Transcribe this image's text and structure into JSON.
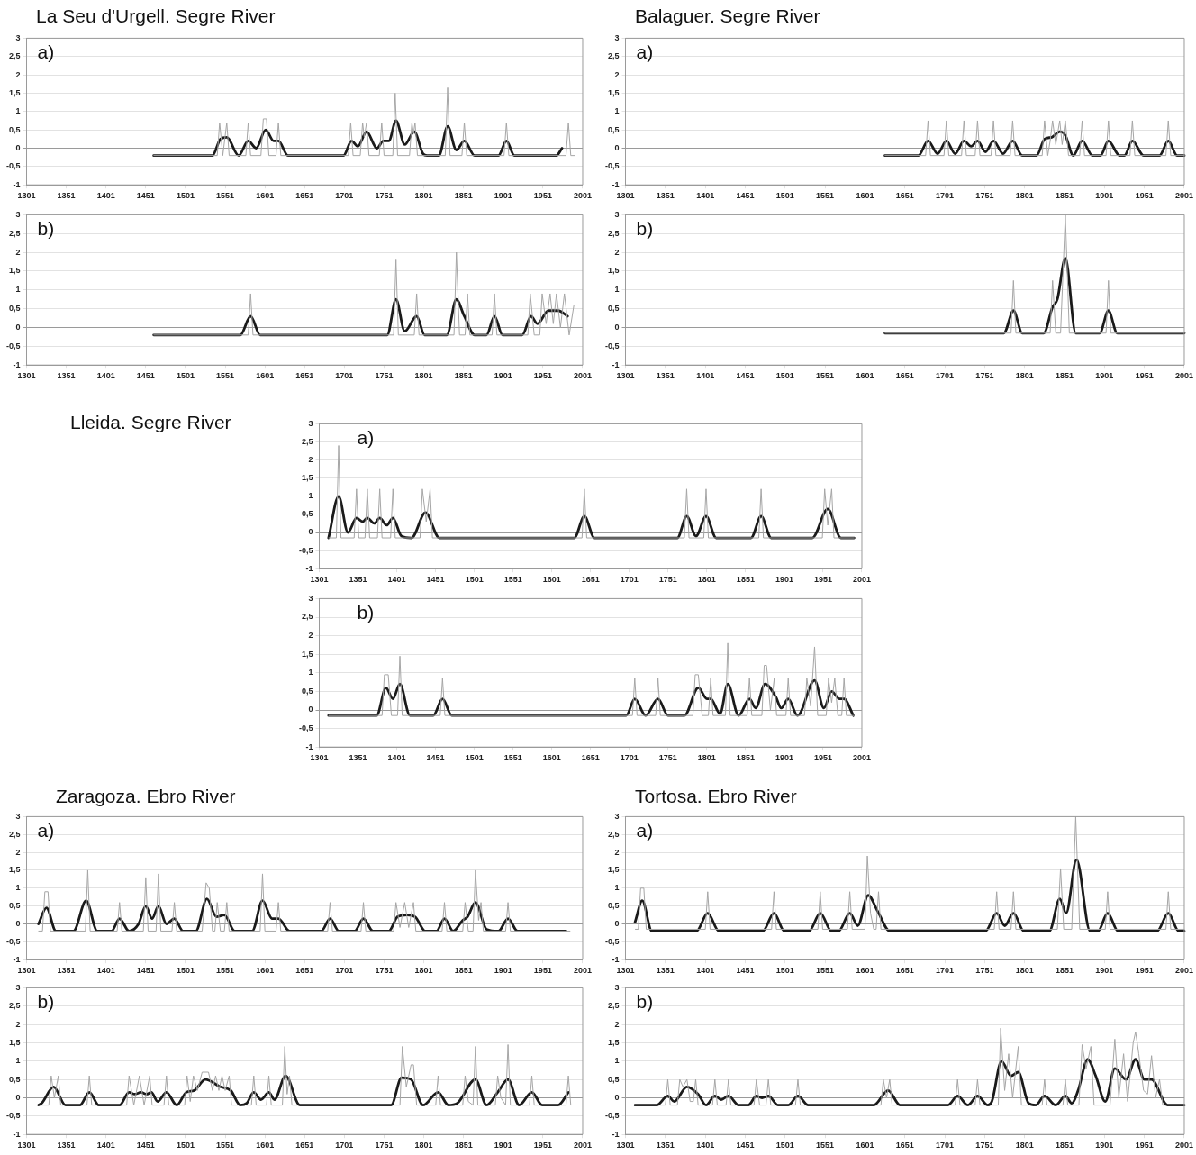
{
  "chart_data": [
    {
      "type": "line",
      "title": "La Seu d'Urgell. Segre River",
      "annotations": [
        "a)"
      ],
      "xlim": [
        1301,
        2001
      ],
      "xticks": [
        1301,
        1351,
        1401,
        1451,
        1501,
        1551,
        1601,
        1651,
        1701,
        1751,
        1801,
        1851,
        1901,
        1951,
        2001
      ],
      "ylim": [
        -1,
        3
      ],
      "yticks": [
        -1,
        {
          "value": -0.5,
          "label": "-0,5"
        },
        0,
        {
          "value": 0.5,
          "label": "0,5"
        },
        1,
        {
          "value": 1.5,
          "label": "1,5"
        },
        2,
        {
          "value": 2.5,
          "label": "2,5"
        },
        3
      ],
      "grid": "y",
      "series": [
        {
          "color": "#a6a6a6",
          "x": [
            1461,
            1541,
            1544,
            1548,
            1553,
            1556,
            1577,
            1580,
            1583,
            1596,
            1599,
            1603,
            1606,
            1615,
            1618,
            1621,
            1706,
            1709,
            1712,
            1721,
            1724,
            1726,
            1729,
            1732,
            1745,
            1748,
            1751,
            1762,
            1765,
            1768,
            1783,
            1786,
            1788,
            1790,
            1793,
            1828,
            1831,
            1834,
            1849,
            1852,
            1855,
            1902,
            1905,
            1908,
            1980,
            1983,
            1986,
            1991
          ],
          "values": [
            -0.2,
            -0.2,
            0.7,
            -0.2,
            0.7,
            -0.2,
            -0.2,
            0.7,
            -0.2,
            -0.2,
            0.8,
            0.8,
            -0.2,
            -0.2,
            0.7,
            -0.2,
            -0.2,
            0.7,
            -0.2,
            -0.2,
            0.7,
            0.3,
            0.7,
            -0.2,
            -0.2,
            0.7,
            -0.2,
            -0.2,
            1.5,
            -0.2,
            -0.2,
            0.7,
            0.4,
            0.7,
            -0.2,
            -0.2,
            1.65,
            -0.2,
            -0.2,
            0.7,
            -0.2,
            -0.2,
            0.7,
            -0.2,
            -0.2,
            0.7,
            -0.2,
            -0.2
          ]
        },
        {
          "color": "#1a1a1a",
          "x": [
            1461,
            1535,
            1545,
            1553,
            1568,
            1580,
            1590,
            1602,
            1612,
            1618,
            1630,
            1700,
            1710,
            1718,
            1729,
            1742,
            1750,
            1757,
            1766,
            1777,
            1789,
            1800,
            1805,
            1820,
            1831,
            1842,
            1852,
            1865,
            1895,
            1905,
            1915,
            1968,
            1975
          ],
          "values": [
            -0.2,
            -0.2,
            0.25,
            0.3,
            -0.2,
            0.2,
            0,
            0.5,
            0.2,
            0.2,
            -0.2,
            -0.2,
            0.2,
            0.05,
            0.45,
            0,
            0.2,
            0.2,
            0.75,
            0.1,
            0.45,
            -0.15,
            -0.2,
            -0.2,
            0.6,
            -0.05,
            0.2,
            -0.2,
            -0.2,
            0.2,
            -0.2,
            -0.2,
            0
          ]
        }
      ]
    },
    {
      "type": "line",
      "annotations": [
        "b)"
      ],
      "xlim": [
        1301,
        2001
      ],
      "xticks": [
        1301,
        1351,
        1401,
        1451,
        1501,
        1551,
        1601,
        1651,
        1701,
        1751,
        1801,
        1851,
        1901,
        1951,
        2001
      ],
      "ylim": [
        -1,
        3
      ],
      "yticks": [
        -1,
        {
          "value": -0.5,
          "label": "-0,5"
        },
        0,
        {
          "value": 0.5,
          "label": "0,5"
        },
        1,
        {
          "value": 1.5,
          "label": "1,5"
        },
        2,
        {
          "value": 2.5,
          "label": "2,5"
        },
        3
      ],
      "grid": "y",
      "series": [
        {
          "color": "#a6a6a6",
          "x": [
            1461,
            1580,
            1583,
            1586,
            1763,
            1766,
            1769,
            1789,
            1792,
            1795,
            1839,
            1842,
            1846,
            1853,
            1856,
            1859,
            1887,
            1890,
            1893,
            1932,
            1935,
            1940,
            1947,
            1950,
            1955,
            1960,
            1964,
            1968,
            1973,
            1978,
            1984,
            1990
          ],
          "values": [
            -0.2,
            -0.2,
            0.9,
            -0.2,
            -0.2,
            1.8,
            -0.2,
            -0.2,
            0.9,
            -0.2,
            -0.2,
            2,
            -0.2,
            -0.2,
            0.9,
            -0.2,
            -0.2,
            0.9,
            -0.2,
            -0.2,
            0.9,
            -0.2,
            -0.2,
            0.9,
            0.1,
            0.9,
            0.1,
            0.9,
            0,
            0.9,
            -0.2,
            0.6
          ]
        },
        {
          "color": "#1a1a1a",
          "x": [
            1461,
            1570,
            1583,
            1595,
            1755,
            1766,
            1777,
            1792,
            1802,
            1830,
            1842,
            1852,
            1865,
            1880,
            1890,
            1900,
            1925,
            1936,
            1944,
            1958,
            1970,
            1982
          ],
          "values": [
            -0.2,
            -0.2,
            0.3,
            -0.2,
            -0.2,
            0.75,
            -0.1,
            0.3,
            -0.2,
            -0.2,
            0.75,
            0.3,
            -0.2,
            -0.2,
            0.3,
            -0.2,
            -0.2,
            0.3,
            0.1,
            0.45,
            0.45,
            0.3
          ]
        }
      ]
    },
    {
      "type": "line",
      "title": "Balaguer. Segre River",
      "annotations": [
        "a)"
      ],
      "xlim": [
        1301,
        2001
      ],
      "xticks": [
        1301,
        1351,
        1401,
        1451,
        1501,
        1551,
        1601,
        1651,
        1701,
        1751,
        1801,
        1851,
        1901,
        1951,
        2001
      ],
      "ylim": [
        -1,
        3
      ],
      "yticks": [
        -1,
        {
          "value": -0.5,
          "label": "-0,5"
        },
        0,
        {
          "value": 0.5,
          "label": "0,5"
        },
        1,
        {
          "value": 1.5,
          "label": "1,5"
        },
        2,
        {
          "value": 2.5,
          "label": "2,5"
        },
        3
      ],
      "grid": "y",
      "series": [
        {
          "color": "#a6a6a6",
          "x": [
            1626,
            1677,
            1680,
            1683,
            1700,
            1703,
            1706,
            1722,
            1725,
            1728,
            1739,
            1742,
            1745,
            1759,
            1762,
            1765,
            1783,
            1786,
            1789,
            1823,
            1826,
            1830,
            1833,
            1836,
            1840,
            1845,
            1848,
            1852,
            1856,
            1870,
            1873,
            1876,
            1903,
            1906,
            1909,
            1933,
            1936,
            1939,
            1978,
            1981,
            1984,
            2001
          ],
          "values": [
            -0.2,
            -0.2,
            0.75,
            -0.2,
            -0.2,
            0.75,
            -0.2,
            -0.2,
            0.75,
            -0.2,
            -0.2,
            0.75,
            -0.2,
            -0.2,
            0.75,
            -0.2,
            -0.2,
            0.75,
            -0.2,
            -0.2,
            0.75,
            -0.2,
            0.2,
            0.75,
            0.1,
            0.75,
            0.1,
            0.75,
            -0.2,
            -0.2,
            0.75,
            -0.2,
            -0.2,
            0.75,
            -0.2,
            -0.2,
            0.75,
            -0.2,
            -0.2,
            0.75,
            -0.2,
            -0.2
          ]
        },
        {
          "color": "#1a1a1a",
          "x": [
            1626,
            1668,
            1680,
            1692,
            1703,
            1714,
            1725,
            1734,
            1742,
            1752,
            1762,
            1774,
            1786,
            1798,
            1816,
            1826,
            1835,
            1845,
            1852,
            1862,
            1873,
            1886,
            1896,
            1906,
            1920,
            1926,
            1936,
            1950,
            1970,
            1981,
            1992,
            2001
          ],
          "values": [
            -0.2,
            -0.2,
            0.2,
            -0.15,
            0.2,
            -0.15,
            0.2,
            0.05,
            0.2,
            -0.1,
            0.2,
            -0.15,
            0.2,
            -0.2,
            -0.2,
            0.25,
            0.3,
            0.45,
            0.35,
            -0.2,
            0.2,
            -0.2,
            -0.2,
            0.2,
            -0.2,
            -0.2,
            0.2,
            -0.2,
            -0.2,
            0.2,
            -0.2,
            -0.2
          ]
        }
      ]
    },
    {
      "type": "line",
      "annotations": [
        "b)"
      ],
      "xlim": [
        1301,
        2001
      ],
      "xticks": [
        1301,
        1351,
        1401,
        1451,
        1501,
        1551,
        1601,
        1651,
        1701,
        1751,
        1801,
        1851,
        1901,
        1951,
        2001
      ],
      "ylim": [
        -1,
        3
      ],
      "yticks": [
        -1,
        {
          "value": -0.5,
          "label": "-0,5"
        },
        0,
        {
          "value": 0.5,
          "label": "0,5"
        },
        1,
        {
          "value": 1.5,
          "label": "1,5"
        },
        2,
        {
          "value": 2.5,
          "label": "2,5"
        },
        3
      ],
      "grid": "y",
      "series": [
        {
          "color": "#a6a6a6",
          "x": [
            1626,
            1784,
            1787,
            1790,
            1833,
            1836,
            1840,
            1846,
            1852,
            1857,
            1903,
            1906,
            1909,
            2001
          ],
          "values": [
            -0.15,
            -0.15,
            1.25,
            -0.15,
            -0.15,
            1.25,
            -0.15,
            -0.15,
            3,
            -0.15,
            -0.15,
            1.25,
            -0.15,
            -0.15
          ]
        },
        {
          "color": "#1a1a1a",
          "x": [
            1626,
            1775,
            1787,
            1798,
            1825,
            1836,
            1842,
            1852,
            1865,
            1895,
            1906,
            1917,
            2001
          ],
          "values": [
            -0.15,
            -0.15,
            0.45,
            -0.15,
            -0.15,
            0.55,
            0.75,
            1.85,
            -0.15,
            -0.15,
            0.45,
            -0.15,
            -0.15
          ]
        }
      ]
    },
    {
      "type": "line",
      "title": "Lleida. Segre River",
      "annotations": [
        "a)"
      ],
      "xlim": [
        1301,
        2001
      ],
      "xticks": [
        1301,
        1351,
        1401,
        1451,
        1501,
        1551,
        1601,
        1651,
        1701,
        1751,
        1801,
        1851,
        1901,
        1951,
        2001
      ],
      "ylim": [
        -1,
        3
      ],
      "yticks": [
        -1,
        {
          "value": -0.5,
          "label": "-0,5"
        },
        0,
        {
          "value": 0.5,
          "label": "0,5"
        },
        1,
        {
          "value": 1.5,
          "label": "1,5"
        },
        2,
        {
          "value": 2.5,
          "label": "2,5"
        },
        3
      ],
      "grid": "y",
      "series": [
        {
          "color": "#a6a6a6",
          "x": [
            1313,
            1323,
            1326,
            1329,
            1346,
            1349,
            1352,
            1360,
            1363,
            1366,
            1376,
            1379,
            1382,
            1393,
            1396,
            1399,
            1431,
            1434,
            1439,
            1444,
            1447,
            1640,
            1643,
            1646,
            1772,
            1775,
            1778,
            1797,
            1800,
            1803,
            1868,
            1871,
            1874,
            1950,
            1953,
            1957,
            1962,
            1965,
            1991
          ],
          "values": [
            -0.15,
            -0.15,
            2.4,
            -0.15,
            -0.15,
            1.2,
            -0.15,
            -0.15,
            1.2,
            -0.15,
            -0.15,
            1.2,
            -0.15,
            -0.15,
            1.2,
            -0.15,
            -0.15,
            1.2,
            0.3,
            1.2,
            -0.15,
            -0.15,
            1.2,
            -0.15,
            -0.15,
            1.2,
            -0.15,
            -0.15,
            1.2,
            -0.15,
            -0.15,
            1.2,
            -0.15,
            -0.15,
            1.2,
            0.2,
            1.2,
            -0.15,
            -0.15
          ]
        },
        {
          "color": "#1a1a1a",
          "x": [
            1313,
            1326,
            1338,
            1349,
            1357,
            1363,
            1372,
            1379,
            1388,
            1396,
            1407,
            1420,
            1438,
            1456,
            1630,
            1643,
            1656,
            1763,
            1775,
            1787,
            1800,
            1813,
            1858,
            1871,
            1884,
            1937,
            1957,
            1974,
            1991
          ],
          "values": [
            -0.15,
            1,
            0,
            0.4,
            0.3,
            0.4,
            0.25,
            0.4,
            0.2,
            0.4,
            -0.1,
            -0.15,
            0.55,
            -0.15,
            -0.15,
            0.45,
            -0.15,
            -0.15,
            0.45,
            -0.1,
            0.45,
            -0.15,
            -0.15,
            0.45,
            -0.15,
            -0.15,
            0.65,
            -0.15,
            -0.15
          ]
        }
      ]
    },
    {
      "type": "line",
      "annotations": [
        "b)"
      ],
      "xlim": [
        1301,
        2001
      ],
      "xticks": [
        1301,
        1351,
        1401,
        1451,
        1501,
        1551,
        1601,
        1651,
        1701,
        1751,
        1801,
        1851,
        1901,
        1951,
        2001
      ],
      "ylim": [
        -1,
        3
      ],
      "yticks": [
        -1,
        {
          "value": -0.5,
          "label": "-0,5"
        },
        0,
        {
          "value": 0.5,
          "label": "0,5"
        },
        1,
        {
          "value": 1.5,
          "label": "1,5"
        },
        2,
        {
          "value": 2.5,
          "label": "2,5"
        },
        3
      ],
      "grid": "y",
      "series": [
        {
          "color": "#a6a6a6",
          "x": [
            1313,
            1382,
            1385,
            1390,
            1394,
            1402,
            1405,
            1408,
            1457,
            1460,
            1463,
            1705,
            1708,
            1711,
            1735,
            1738,
            1741,
            1783,
            1786,
            1790,
            1795,
            1803,
            1806,
            1809,
            1825,
            1828,
            1831,
            1853,
            1856,
            1859,
            1872,
            1875,
            1878,
            1883,
            1888,
            1891,
            1903,
            1906,
            1909,
            1927,
            1930,
            1935,
            1940,
            1944,
            1955,
            1958,
            1962,
            1966,
            1970,
            1975,
            1978,
            1981,
            1991
          ],
          "values": [
            -0.15,
            -0.15,
            0.95,
            0.95,
            -0.15,
            -0.15,
            1.45,
            -0.15,
            -0.15,
            0.85,
            -0.15,
            -0.15,
            0.85,
            -0.15,
            -0.15,
            0.85,
            -0.15,
            -0.15,
            0.95,
            0.95,
            -0.15,
            -0.15,
            0.85,
            -0.15,
            -0.15,
            1.8,
            -0.15,
            -0.15,
            0.85,
            -0.15,
            -0.15,
            1.2,
            1.2,
            0,
            0.85,
            -0.15,
            -0.15,
            0.85,
            -0.15,
            -0.15,
            0.85,
            0.1,
            1.7,
            -0.15,
            -0.15,
            0.85,
            0.2,
            0.85,
            -0.15,
            -0.15,
            0.85,
            -0.15,
            -0.15
          ]
        },
        {
          "color": "#1a1a1a",
          "x": [
            1313,
            1375,
            1387,
            1396,
            1405,
            1418,
            1448,
            1460,
            1472,
            1697,
            1708,
            1722,
            1738,
            1751,
            1772,
            1790,
            1801,
            1806,
            1818,
            1828,
            1842,
            1856,
            1864,
            1876,
            1890,
            1897,
            1906,
            1918,
            1940,
            1952,
            1962,
            1972,
            1978,
            1990
          ],
          "values": [
            -0.15,
            -0.15,
            0.6,
            0.3,
            0.7,
            -0.15,
            -0.15,
            0.3,
            -0.15,
            -0.15,
            0.3,
            -0.15,
            0.3,
            -0.15,
            -0.15,
            0.6,
            0.3,
            0.3,
            -0.1,
            0.7,
            -0.15,
            0.3,
            0.05,
            0.7,
            0.35,
            0.05,
            0.3,
            -0.15,
            0.8,
            0.05,
            0.5,
            0.3,
            0.3,
            -0.15
          ]
        }
      ]
    },
    {
      "type": "line",
      "title": "Zaragoza. Ebro River",
      "annotations": [
        "a)"
      ],
      "xlim": [
        1301,
        2001
      ],
      "xticks": [
        1301,
        1351,
        1401,
        1451,
        1501,
        1551,
        1601,
        1651,
        1701,
        1751,
        1801,
        1851,
        1901,
        1951,
        2001
      ],
      "ylim": [
        -1,
        3
      ],
      "yticks": [
        -1,
        {
          "value": -0.5,
          "label": "-0,5"
        },
        0,
        {
          "value": 0.5,
          "label": "0,5"
        },
        1,
        {
          "value": 1.5,
          "label": "1,5"
        },
        2,
        {
          "value": 2.5,
          "label": "2,5"
        },
        3
      ],
      "grid": "y",
      "series": [
        {
          "color": "#a6a6a6",
          "x": [
            1316,
            1321,
            1324,
            1328,
            1331,
            1375,
            1378,
            1381,
            1415,
            1418,
            1421,
            1448,
            1451,
            1454,
            1464,
            1467,
            1470,
            1484,
            1487,
            1490,
            1522,
            1527,
            1531,
            1535,
            1538,
            1541,
            1545,
            1550,
            1553,
            1556,
            1595,
            1598,
            1601,
            1615,
            1618,
            1621,
            1680,
            1683,
            1686,
            1722,
            1725,
            1728,
            1763,
            1766,
            1771,
            1777,
            1782,
            1788,
            1791,
            1824,
            1827,
            1830,
            1850,
            1853,
            1857,
            1863,
            1866,
            1870,
            1873,
            1876,
            1904,
            1907,
            1910,
            1985
          ],
          "values": [
            -0.2,
            -0.2,
            0.9,
            0.9,
            -0.2,
            -0.2,
            1.5,
            -0.2,
            -0.2,
            0.6,
            -0.2,
            -0.2,
            1.3,
            -0.2,
            -0.2,
            1.4,
            -0.2,
            -0.2,
            0.6,
            -0.2,
            -0.2,
            1.15,
            1,
            -0.2,
            -0.2,
            0.6,
            -0.2,
            -0.2,
            0.6,
            -0.2,
            -0.2,
            1.4,
            -0.2,
            -0.2,
            0.6,
            -0.2,
            -0.2,
            0.6,
            -0.2,
            -0.2,
            0.6,
            -0.2,
            -0.2,
            0.6,
            -0.1,
            0.6,
            -0.1,
            0.6,
            -0.2,
            -0.2,
            0.6,
            -0.2,
            -0.2,
            0.6,
            -0.2,
            -0.2,
            1.5,
            0.1,
            0.6,
            -0.2,
            -0.2,
            0.6,
            -0.2,
            -0.2
          ]
        },
        {
          "color": "#1a1a1a",
          "x": [
            1316,
            1326,
            1338,
            1360,
            1376,
            1390,
            1408,
            1418,
            1430,
            1442,
            1451,
            1459,
            1467,
            1477,
            1487,
            1498,
            1514,
            1528,
            1540,
            1550,
            1563,
            1585,
            1598,
            1610,
            1618,
            1632,
            1672,
            1683,
            1694,
            1714,
            1725,
            1737,
            1757,
            1768,
            1780,
            1790,
            1803,
            1817,
            1827,
            1838,
            1850,
            1856,
            1866,
            1880,
            1895,
            1907,
            1919,
            1980
          ],
          "values": [
            0,
            0.45,
            -0.2,
            -0.2,
            0.65,
            -0.2,
            -0.2,
            0.15,
            -0.2,
            0,
            0.5,
            0.15,
            0.5,
            0,
            0.15,
            -0.2,
            -0.2,
            0.7,
            0.2,
            0.25,
            -0.2,
            -0.2,
            0.65,
            0.15,
            0.15,
            -0.2,
            -0.2,
            0.15,
            -0.2,
            -0.2,
            0.15,
            -0.2,
            -0.2,
            0.2,
            0.25,
            0.2,
            -0.2,
            -0.2,
            0.15,
            -0.2,
            0.1,
            0.2,
            0.6,
            -0.15,
            -0.2,
            0.15,
            -0.2,
            -0.2
          ]
        }
      ]
    },
    {
      "type": "line",
      "annotations": [
        "b)"
      ],
      "xlim": [
        1301,
        2001
      ],
      "xticks": [
        1301,
        1351,
        1401,
        1451,
        1501,
        1551,
        1601,
        1651,
        1701,
        1751,
        1801,
        1851,
        1901,
        1951,
        2001
      ],
      "ylim": [
        -1,
        3
      ],
      "yticks": [
        -1,
        {
          "value": -0.5,
          "label": "-0,5"
        },
        0,
        {
          "value": 0.5,
          "label": "0,5"
        },
        1,
        {
          "value": 1.5,
          "label": "1,5"
        },
        2,
        {
          "value": 2.5,
          "label": "2,5"
        },
        3
      ],
      "grid": "y",
      "series": [
        {
          "color": "#a6a6a6",
          "x": [
            1316,
            1329,
            1332,
            1336,
            1341,
            1344,
            1377,
            1380,
            1383,
            1427,
            1430,
            1436,
            1443,
            1449,
            1456,
            1459,
            1474,
            1477,
            1480,
            1500,
            1503,
            1507,
            1511,
            1516,
            1522,
            1530,
            1535,
            1539,
            1543,
            1547,
            1551,
            1556,
            1559,
            1584,
            1587,
            1590,
            1603,
            1606,
            1609,
            1623,
            1626,
            1629,
            1632,
            1635,
            1771,
            1774,
            1779,
            1785,
            1788,
            1792,
            1816,
            1819,
            1822,
            1850,
            1853,
            1857,
            1863,
            1866,
            1869,
            1891,
            1894,
            1898,
            1904,
            1907,
            1910,
            1934,
            1937,
            1940,
            1980,
            1983,
            1986
          ],
          "values": [
            -0.2,
            -0.2,
            0.6,
            0,
            0.6,
            -0.2,
            -0.2,
            0.6,
            -0.2,
            -0.2,
            0.6,
            -0.2,
            0.6,
            -0.2,
            0.6,
            -0.2,
            -0.2,
            0.6,
            -0.2,
            -0.2,
            0.6,
            -0.1,
            0.6,
            0.2,
            0.7,
            0.7,
            0.2,
            0.6,
            0.2,
            0.6,
            0.2,
            0.6,
            -0.2,
            -0.2,
            0.6,
            -0.2,
            -0.2,
            0.6,
            -0.2,
            -0.2,
            1.4,
            0.1,
            0.6,
            -0.2,
            -0.2,
            1.4,
            0.3,
            0.9,
            0.9,
            -0.2,
            -0.2,
            0.6,
            -0.2,
            -0.2,
            0.6,
            -0.1,
            -0.2,
            1.4,
            -0.2,
            -0.2,
            0.6,
            0,
            -0.2,
            1.45,
            -0.2,
            -0.2,
            0.6,
            -0.2,
            -0.2,
            0.6,
            -0.2
          ]
        },
        {
          "color": "#1a1a1a",
          "x": [
            1316,
            1320,
            1335,
            1350,
            1368,
            1380,
            1392,
            1418,
            1430,
            1437,
            1445,
            1452,
            1458,
            1466,
            1477,
            1490,
            1502,
            1512,
            1526,
            1545,
            1558,
            1570,
            1578,
            1587,
            1596,
            1606,
            1613,
            1627,
            1645,
            1760,
            1773,
            1785,
            1800,
            1819,
            1832,
            1843,
            1866,
            1880,
            1894,
            1907,
            1921,
            1937,
            1950,
            1970,
            1983
          ],
          "values": [
            -0.2,
            -0.15,
            0.3,
            -0.2,
            -0.2,
            0.15,
            -0.2,
            -0.2,
            0.15,
            0.1,
            0.15,
            0.1,
            0.15,
            -0.1,
            0.15,
            -0.2,
            0.15,
            0.2,
            0.5,
            0.3,
            0.2,
            -0.2,
            -0.15,
            0.15,
            -0.05,
            0.15,
            -0.05,
            0.6,
            -0.2,
            -0.2,
            0.55,
            0.5,
            -0.2,
            0.15,
            -0.2,
            -0.15,
            0.5,
            -0.2,
            0.15,
            0.5,
            -0.2,
            0.15,
            -0.2,
            -0.2,
            0.15
          ]
        }
      ]
    },
    {
      "type": "line",
      "title": "Tortosa. Ebro River",
      "annotations": [
        "a)"
      ],
      "xlim": [
        1301,
        2001
      ],
      "xticks": [
        1301,
        1351,
        1401,
        1451,
        1501,
        1551,
        1601,
        1651,
        1701,
        1751,
        1801,
        1851,
        1901,
        1951,
        2001
      ],
      "ylim": [
        -1,
        3
      ],
      "yticks": [
        -1,
        {
          "value": -0.5,
          "label": "-0,5"
        },
        0,
        {
          "value": 0.5,
          "label": "0,5"
        },
        1,
        {
          "value": 1.5,
          "label": "1,5"
        },
        2,
        {
          "value": 2.5,
          "label": "2,5"
        },
        3
      ],
      "grid": "y",
      "series": [
        {
          "color": "#a6a6a6",
          "x": [
            1313,
            1317,
            1320,
            1324,
            1327,
            1401,
            1404,
            1407,
            1484,
            1487,
            1490,
            1542,
            1545,
            1548,
            1579,
            1582,
            1585,
            1601,
            1604,
            1608,
            1612,
            1615,
            1618,
            1621,
            1763,
            1766,
            1769,
            1784,
            1787,
            1790,
            1842,
            1846,
            1850,
            1860,
            1865,
            1870,
            1902,
            1905,
            1908,
            1978,
            1981,
            1984,
            2001
          ],
          "values": [
            -0.15,
            -0.15,
            1,
            1,
            -0.15,
            -0.15,
            0.9,
            -0.15,
            -0.15,
            0.9,
            -0.15,
            -0.15,
            0.9,
            -0.15,
            -0.15,
            0.9,
            -0.15,
            -0.15,
            1.9,
            0.3,
            -0.15,
            -0.15,
            0.9,
            -0.15,
            -0.15,
            0.9,
            -0.15,
            -0.15,
            0.9,
            -0.15,
            -0.15,
            1.55,
            -0.15,
            -0.15,
            3,
            -0.15,
            -0.15,
            0.9,
            -0.15,
            -0.15,
            0.9,
            -0.15,
            -0.15
          ]
        },
        {
          "color": "#1a1a1a",
          "x": [
            1313,
            1322,
            1334,
            1390,
            1404,
            1418,
            1473,
            1487,
            1500,
            1531,
            1545,
            1559,
            1568,
            1582,
            1592,
            1605,
            1617,
            1632,
            1752,
            1766,
            1776,
            1787,
            1800,
            1832,
            1845,
            1853,
            1866,
            1883,
            1893,
            1905,
            1918,
            1967,
            1981,
            1994,
            2001
          ],
          "values": [
            0.05,
            0.65,
            -0.2,
            -0.2,
            0.3,
            -0.2,
            -0.2,
            0.3,
            -0.2,
            -0.2,
            0.3,
            -0.2,
            -0.2,
            0.3,
            -0.05,
            0.8,
            0.35,
            -0.2,
            -0.2,
            0.3,
            -0.05,
            0.3,
            -0.2,
            -0.2,
            0.7,
            0.3,
            1.8,
            -0.2,
            -0.2,
            0.3,
            -0.2,
            -0.2,
            0.3,
            -0.2,
            -0.2
          ]
        }
      ]
    },
    {
      "type": "line",
      "annotations": [
        "b)"
      ],
      "xlim": [
        1301,
        2001
      ],
      "xticks": [
        1301,
        1351,
        1401,
        1451,
        1501,
        1551,
        1601,
        1651,
        1701,
        1751,
        1801,
        1851,
        1901,
        1951,
        2001
      ],
      "ylim": [
        -1,
        3
      ],
      "yticks": [
        -1,
        {
          "value": -0.5,
          "label": "-0,5"
        },
        0,
        {
          "value": 0.5,
          "label": "0,5"
        },
        1,
        {
          "value": 1.5,
          "label": "1,5"
        },
        2,
        {
          "value": 2.5,
          "label": "2,5"
        },
        3
      ],
      "grid": "y",
      "series": [
        {
          "color": "#a6a6a6",
          "x": [
            1313,
            1351,
            1354,
            1357,
            1366,
            1369,
            1373,
            1378,
            1382,
            1386,
            1389,
            1392,
            1410,
            1413,
            1416,
            1427,
            1430,
            1433,
            1462,
            1465,
            1469,
            1477,
            1480,
            1483,
            1514,
            1517,
            1520,
            1621,
            1624,
            1628,
            1632,
            1635,
            1714,
            1717,
            1720,
            1739,
            1742,
            1745,
            1768,
            1771,
            1776,
            1781,
            1786,
            1793,
            1797,
            1823,
            1826,
            1829,
            1849,
            1852,
            1855,
            1869,
            1873,
            1878,
            1884,
            1888,
            1897,
            1908,
            1914,
            1919,
            1925,
            1930,
            1937,
            1940,
            1944,
            1950,
            1955,
            1960,
            1965,
            1970,
            1974,
            2001
          ],
          "values": [
            -0.2,
            -0.2,
            0.5,
            -0.2,
            -0.2,
            0.5,
            0.3,
            0.5,
            -0.1,
            -0.1,
            0.5,
            -0.2,
            -0.2,
            0.5,
            -0.2,
            -0.2,
            0.5,
            -0.2,
            -0.2,
            0.5,
            -0.2,
            -0.2,
            0.5,
            -0.2,
            -0.2,
            0.5,
            -0.2,
            -0.2,
            0.5,
            0,
            0.5,
            -0.2,
            -0.2,
            0.5,
            -0.2,
            -0.2,
            0.5,
            -0.2,
            -0.2,
            1.9,
            0.2,
            1.2,
            0,
            1.4,
            -0.2,
            -0.2,
            0.5,
            -0.2,
            -0.2,
            0.5,
            -0.2,
            -0.2,
            1.45,
            0.8,
            1.4,
            -0.2,
            -0.2,
            -0.2,
            1.6,
            0,
            1.2,
            -0.1,
            1.5,
            1.8,
            1.2,
            0.2,
            0.1,
            1.15,
            0,
            0.5,
            -0.2,
            -0.2
          ]
        },
        {
          "color": "#1a1a1a",
          "x": [
            1313,
            1340,
            1354,
            1362,
            1378,
            1392,
            1402,
            1413,
            1421,
            1430,
            1443,
            1455,
            1465,
            1472,
            1480,
            1492,
            1505,
            1517,
            1530,
            1612,
            1630,
            1645,
            1705,
            1717,
            1730,
            1742,
            1755,
            1760,
            1772,
            1784,
            1793,
            1806,
            1815,
            1826,
            1840,
            1852,
            1860,
            1868,
            1880,
            1890,
            1902,
            1914,
            1928,
            1940,
            1951,
            1960,
            1980,
            2001
          ],
          "values": [
            -0.2,
            -0.2,
            0.05,
            -0.1,
            0.3,
            0.1,
            -0.2,
            0.05,
            -0.05,
            0.05,
            -0.2,
            -0.2,
            0.05,
            0,
            0.05,
            -0.2,
            -0.2,
            0.05,
            -0.2,
            -0.2,
            0.2,
            -0.2,
            -0.2,
            0.05,
            -0.2,
            0.05,
            -0.2,
            -0.1,
            1,
            0.6,
            0.7,
            -0.15,
            -0.2,
            0.05,
            -0.2,
            0.05,
            -0.15,
            0.2,
            1.05,
            0.6,
            -0.1,
            0.8,
            0.5,
            1.05,
            0.5,
            0.5,
            -0.2,
            -0.2
          ]
        }
      ]
    }
  ]
}
